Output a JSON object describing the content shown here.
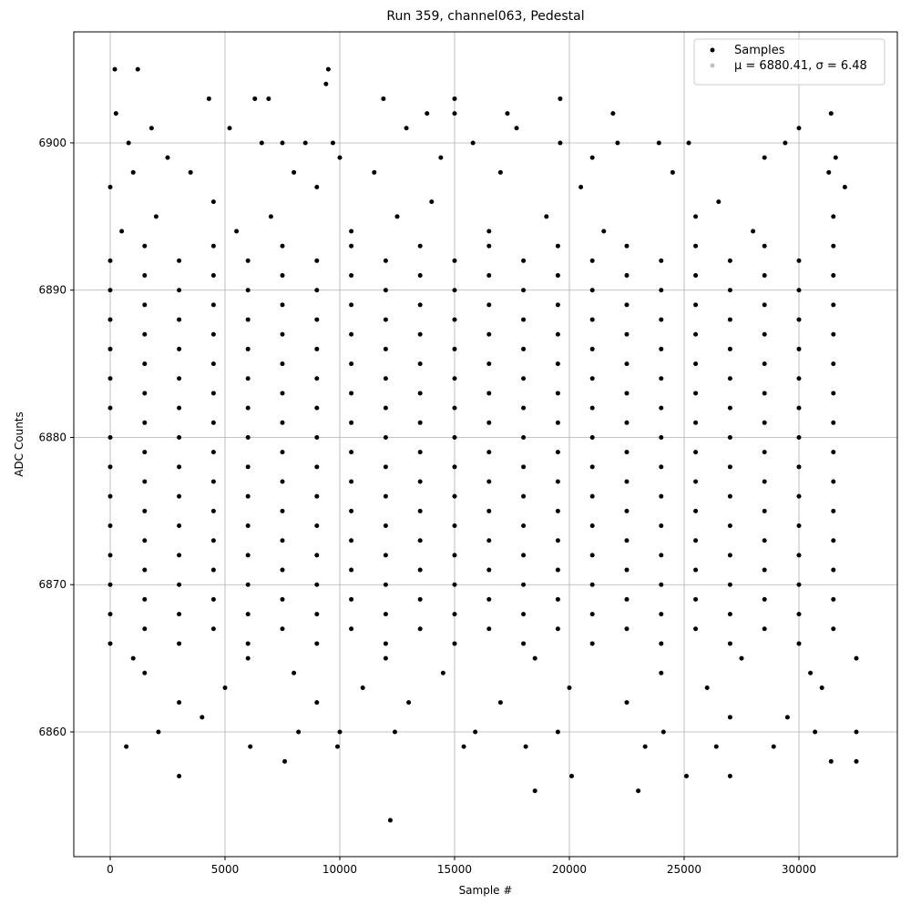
{
  "chart_data": {
    "type": "scatter",
    "title": "Run 359, channel063, Pedestal",
    "xlabel": "Sample #",
    "ylabel": "ADC Counts",
    "xlim": [
      -1587,
      34286
    ],
    "ylim": [
      6851.53,
      6907.54
    ],
    "xticks": [
      0,
      5000,
      10000,
      15000,
      20000,
      25000,
      30000
    ],
    "yticks": [
      6860,
      6870,
      6880,
      6890,
      6900
    ],
    "grid": true,
    "legend": "upper right",
    "series": [
      {
        "name": "Samples",
        "color": "#000000",
        "x": [
          0,
          3000,
          6000,
          9000,
          12000,
          15000,
          18000,
          21000,
          24000,
          27000,
          30000,
          1500,
          4500,
          7500,
          10500,
          13500,
          16500,
          19500,
          22500,
          25500,
          28500,
          31500,
          0,
          3000,
          6000,
          9000,
          12000,
          15000,
          18000,
          21000,
          24000,
          27000,
          30000,
          1500,
          4500,
          7500,
          10500,
          13500,
          16500,
          19500,
          22500,
          25500,
          28500,
          31500,
          0,
          3000,
          6000,
          9000,
          12000,
          15000,
          18000,
          21000,
          24000,
          27000,
          30000,
          1500,
          4500,
          7500,
          10500,
          13500,
          16500,
          19500,
          22500,
          25500,
          28500,
          31500,
          0,
          3000,
          6000,
          9000,
          12000,
          15000,
          18000,
          21000,
          24000,
          27000,
          30000,
          1500,
          4500,
          7500,
          10500,
          13500,
          16500,
          19500,
          22500,
          25500,
          28500,
          31500,
          0,
          3000,
          6000,
          9000,
          12000,
          15000,
          18000,
          21000,
          24000,
          27000,
          30000,
          1500,
          4500,
          7500,
          10500,
          13500,
          16500,
          19500,
          22500,
          25500,
          28500,
          31500,
          0,
          3000,
          6000,
          9000,
          12000,
          15000,
          18000,
          21000,
          24000,
          27000,
          30000,
          1500,
          4500,
          7500,
          10500,
          13500,
          16500,
          19500,
          22500,
          25500,
          28500,
          31500,
          0,
          3000,
          6000,
          9000,
          12000,
          15000,
          18000,
          21000,
          24000,
          27000,
          30000,
          1500,
          4500,
          7500,
          10500,
          13500,
          16500,
          19500,
          22500,
          25500,
          28500,
          31500,
          0,
          3000,
          6000,
          9000,
          12000,
          15000,
          18000,
          21000,
          24000,
          27000,
          30000,
          1500,
          4500,
          7500,
          10500,
          13500,
          16500,
          19500,
          22500,
          25500,
          28500,
          31500,
          0,
          3000,
          6000,
          9000,
          12000,
          15000,
          18000,
          21000,
          24000,
          27000,
          30000,
          1500,
          4500,
          7500,
          10500,
          13500,
          16500,
          19500,
          22500,
          25500,
          28500,
          31500,
          0,
          3000,
          6000,
          9000,
          12000,
          15000,
          18000,
          21000,
          24000,
          27000,
          30000,
          1500,
          4500,
          7500,
          10500,
          13500,
          16500,
          19500,
          22500,
          25500,
          28500,
          31500,
          0,
          3000,
          6000,
          9000,
          12000,
          15000,
          18000,
          21000,
          24000,
          27000,
          30000,
          1500,
          4500,
          7500,
          10500,
          13500,
          16500,
          19500,
          22500,
          25500,
          28500,
          31500,
          0,
          3000,
          6000,
          9000,
          12000,
          15000,
          18000,
          21000,
          24000,
          27000,
          30000,
          1500,
          4500,
          7500,
          10500,
          13500,
          16500,
          19500,
          22500,
          25500,
          28500,
          31500,
          0,
          3000,
          6000,
          9000,
          12000,
          15000,
          18000,
          21000,
          24000,
          27000,
          30000,
          1500,
          4500,
          7500,
          10500,
          13500,
          16500,
          19500,
          22500,
          25500,
          28500,
          31500,
          0,
          3000,
          6000,
          9000,
          12000,
          15000,
          18000,
          21000,
          24000,
          27000,
          30000,
          1500,
          4500,
          7500,
          10500,
          13500,
          16500,
          19500,
          22500,
          25500,
          28500,
          31500,
          200,
          1200,
          250,
          9400,
          9500,
          4300,
          6300,
          6900,
          11900,
          15000,
          19600,
          13800,
          15000,
          17300,
          21900,
          31400,
          1800,
          5200,
          12900,
          17700,
          30000,
          800,
          6600,
          7500,
          8500,
          9700,
          15800,
          19600,
          22100,
          23900,
          25200,
          29400,
          700,
          2100,
          3000,
          6100,
          7600,
          8200,
          9900,
          10000,
          12200,
          12400,
          15400,
          15900,
          18100,
          18500,
          19500,
          20100,
          23000,
          23300,
          24100,
          25100,
          26400,
          27000,
          28900,
          30700,
          31400,
          32500,
          32500,
          3000,
          4000,
          9000,
          13000,
          17000,
          22500,
          27000,
          29500,
          5000,
          11000,
          20000,
          26000,
          31000,
          1500,
          8000,
          14500,
          24000,
          30500,
          1000,
          6000,
          12000,
          18500,
          27500,
          32500,
          500,
          5500,
          10500,
          16500,
          21500,
          28000,
          2000,
          7000,
          12500,
          19000,
          25500,
          31500,
          0,
          4500,
          9000,
          14000,
          20500,
          26500,
          32000,
          1000,
          3500,
          8000,
          11500,
          17000,
          24500,
          31300,
          2500,
          10000,
          14400,
          21000,
          28500,
          31600
        ],
        "values": [
          6866,
          6866,
          6866,
          6866,
          6866,
          6866,
          6866,
          6866,
          6866,
          6866,
          6866,
          6867,
          6867,
          6867,
          6867,
          6867,
          6867,
          6867,
          6867,
          6867,
          6867,
          6867,
          6868,
          6868,
          6868,
          6868,
          6868,
          6868,
          6868,
          6868,
          6868,
          6868,
          6868,
          6869,
          6869,
          6869,
          6869,
          6869,
          6869,
          6869,
          6869,
          6869,
          6869,
          6869,
          6870,
          6870,
          6870,
          6870,
          6870,
          6870,
          6870,
          6870,
          6870,
          6870,
          6870,
          6871,
          6871,
          6871,
          6871,
          6871,
          6871,
          6871,
          6871,
          6871,
          6871,
          6871,
          6872,
          6872,
          6872,
          6872,
          6872,
          6872,
          6872,
          6872,
          6872,
          6872,
          6872,
          6873,
          6873,
          6873,
          6873,
          6873,
          6873,
          6873,
          6873,
          6873,
          6873,
          6873,
          6874,
          6874,
          6874,
          6874,
          6874,
          6874,
          6874,
          6874,
          6874,
          6874,
          6874,
          6875,
          6875,
          6875,
          6875,
          6875,
          6875,
          6875,
          6875,
          6875,
          6875,
          6875,
          6876,
          6876,
          6876,
          6876,
          6876,
          6876,
          6876,
          6876,
          6876,
          6876,
          6876,
          6877,
          6877,
          6877,
          6877,
          6877,
          6877,
          6877,
          6877,
          6877,
          6877,
          6877,
          6878,
          6878,
          6878,
          6878,
          6878,
          6878,
          6878,
          6878,
          6878,
          6878,
          6878,
          6879,
          6879,
          6879,
          6879,
          6879,
          6879,
          6879,
          6879,
          6879,
          6879,
          6879,
          6880,
          6880,
          6880,
          6880,
          6880,
          6880,
          6880,
          6880,
          6880,
          6880,
          6880,
          6881,
          6881,
          6881,
          6881,
          6881,
          6881,
          6881,
          6881,
          6881,
          6881,
          6881,
          6882,
          6882,
          6882,
          6882,
          6882,
          6882,
          6882,
          6882,
          6882,
          6882,
          6882,
          6883,
          6883,
          6883,
          6883,
          6883,
          6883,
          6883,
          6883,
          6883,
          6883,
          6883,
          6884,
          6884,
          6884,
          6884,
          6884,
          6884,
          6884,
          6884,
          6884,
          6884,
          6884,
          6885,
          6885,
          6885,
          6885,
          6885,
          6885,
          6885,
          6885,
          6885,
          6885,
          6885,
          6886,
          6886,
          6886,
          6886,
          6886,
          6886,
          6886,
          6886,
          6886,
          6886,
          6886,
          6887,
          6887,
          6887,
          6887,
          6887,
          6887,
          6887,
          6887,
          6887,
          6887,
          6887,
          6888,
          6888,
          6888,
          6888,
          6888,
          6888,
          6888,
          6888,
          6888,
          6888,
          6888,
          6889,
          6889,
          6889,
          6889,
          6889,
          6889,
          6889,
          6889,
          6889,
          6889,
          6889,
          6890,
          6890,
          6890,
          6890,
          6890,
          6890,
          6890,
          6890,
          6890,
          6890,
          6890,
          6891,
          6891,
          6891,
          6891,
          6891,
          6891,
          6891,
          6891,
          6891,
          6891,
          6891,
          6892,
          6892,
          6892,
          6892,
          6892,
          6892,
          6892,
          6892,
          6892,
          6892,
          6892,
          6893,
          6893,
          6893,
          6893,
          6893,
          6893,
          6893,
          6893,
          6893,
          6893,
          6893,
          6905,
          6905,
          6902,
          6904,
          6905,
          6903,
          6903,
          6903,
          6903,
          6903,
          6903,
          6902,
          6902,
          6902,
          6902,
          6902,
          6901,
          6901,
          6901,
          6901,
          6901,
          6900,
          6900,
          6900,
          6900,
          6900,
          6900,
          6900,
          6900,
          6900,
          6900,
          6900,
          6859,
          6860,
          6857,
          6859,
          6858,
          6860,
          6859,
          6860,
          6854,
          6860,
          6859,
          6860,
          6859,
          6856,
          6860,
          6857,
          6856,
          6859,
          6860,
          6857,
          6859,
          6857,
          6859,
          6860,
          6858,
          6858,
          6860,
          6862,
          6861,
          6862,
          6862,
          6862,
          6862,
          6861,
          6861,
          6863,
          6863,
          6863,
          6863,
          6863,
          6864,
          6864,
          6864,
          6864,
          6864,
          6865,
          6865,
          6865,
          6865,
          6865,
          6865,
          6894,
          6894,
          6894,
          6894,
          6894,
          6894,
          6895,
          6895,
          6895,
          6895,
          6895,
          6895,
          6897,
          6896,
          6897,
          6896,
          6897,
          6896,
          6897,
          6898,
          6898,
          6898,
          6898,
          6898,
          6898,
          6898,
          6899,
          6899,
          6899,
          6899,
          6899,
          6899
        ]
      },
      {
        "name": "μ = 6880.41, σ = 6.48",
        "color": "#c0c0c0",
        "x": [],
        "values": []
      }
    ]
  }
}
